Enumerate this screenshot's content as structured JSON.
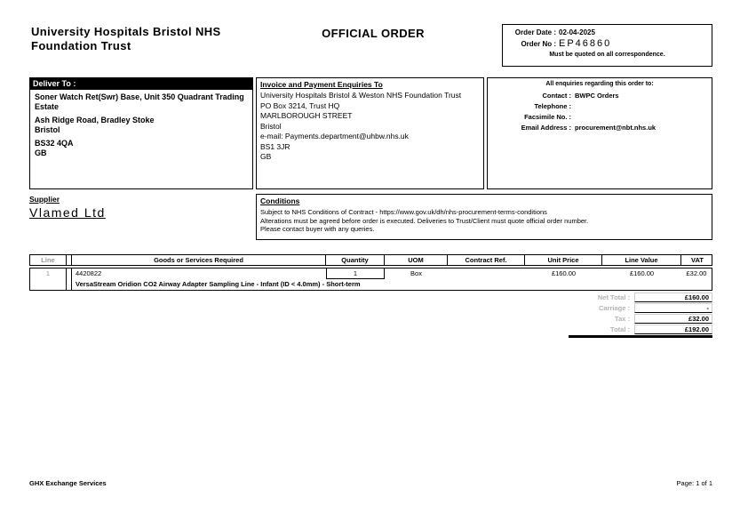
{
  "header": {
    "trust_name_line1": "University Hospitals Bristol NHS",
    "trust_name_line2": "Foundation Trust",
    "doc_title": "OFFICIAL ORDER"
  },
  "order_info": {
    "order_date_label": "Order Date :",
    "order_date": "02-04-2025",
    "order_no_label": "Order No :",
    "order_no": "EP46860",
    "note": "Must be quoted on all correspondence."
  },
  "deliver_to": {
    "header": "Deliver To :",
    "lines": [
      "Soner Watch Ret(Swr) Base, Unit 350 Quadrant Trading Estate",
      "Ash Ridge Road, Bradley Stoke",
      "Bristol",
      "BS32 4QA",
      "GB"
    ]
  },
  "invoice_to": {
    "header": "Invoice and Payment Enquiries To",
    "lines": [
      "University Hospitals Bristol & Weston NHS Foundation Trust",
      "PO Box 3214, Trust HQ",
      "MARLBOROUGH STREET",
      "Bristol",
      "e-mail: Payments.department@uhbw.nhs.uk",
      "BS1 3JR",
      "GB"
    ]
  },
  "enquiries": {
    "header": "All enquiries regarding this order to:",
    "rows": [
      {
        "label": "Contact :",
        "value": "BWPC Orders"
      },
      {
        "label": "Telephone :",
        "value": ""
      },
      {
        "label": "Facsimile No. :",
        "value": ""
      },
      {
        "label": "Email Address :",
        "value": "procurement@nbt.nhs.uk"
      }
    ]
  },
  "supplier": {
    "header": "Supplier",
    "name": "Vlamed Ltd"
  },
  "conditions": {
    "header": "Conditions",
    "lines": [
      "Subject to NHS Conditions of Contract - https://www.gov.uk/dh/nhs-procurement-terms-conditions",
      "Alterations must be agreed before order is executed. Deliveries to Trust/Client must quote official order number.",
      "Please contact buyer with any queries."
    ]
  },
  "items_table": {
    "headers": {
      "line": "Line",
      "goods": "Goods or Services Required",
      "quantity": "Quantity",
      "uom": "UOM",
      "contract_ref": "Contract Ref.",
      "unit_price": "Unit Price",
      "line_value": "Line Value",
      "vat": "VAT"
    },
    "rows": [
      {
        "line": "1",
        "code": "4420822",
        "description": "VersaStream Oridion CO2 Airway Adapter Sampling Line - Infant (ID < 4.0mm) - Short-term",
        "quantity": "1",
        "uom": "Box",
        "contract_ref": "",
        "unit_price": "£160.00",
        "line_value": "£160.00",
        "vat": "£32.00"
      }
    ]
  },
  "totals": {
    "rows": [
      {
        "label": "Net Total :",
        "value": "£160.00"
      },
      {
        "label": "Carriage :",
        "value": "-"
      },
      {
        "label": "Tax :",
        "value": "£32.00"
      },
      {
        "label": "Total :",
        "value": "£192.00"
      }
    ]
  },
  "footer": {
    "left": "GHX Exchange Services",
    "right": "Page: 1 of 1"
  },
  "colors": {
    "header_bar": "#000000",
    "muted_gray": "#b3b3b3",
    "table_gray": "#979797"
  }
}
